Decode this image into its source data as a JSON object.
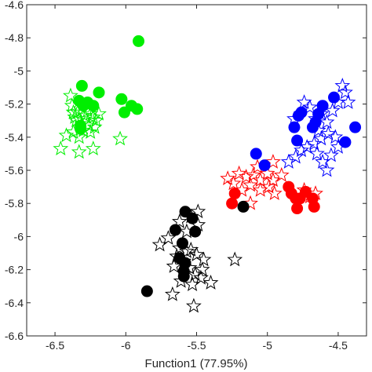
{
  "chart_data": {
    "type": "scatter",
    "title": "",
    "xlabel": "Function1 (77.95%)",
    "ylabel": "",
    "xlim": [
      -6.7,
      -4.3
    ],
    "ylim": [
      -6.6,
      -4.6
    ],
    "xticks": [
      -6.5,
      -6,
      -5.5,
      -5,
      -4.5
    ],
    "xtick_labels": [
      "-6.5",
      "-6",
      "-5.5",
      "-5",
      "-4.5"
    ],
    "yticks": [
      -4.6,
      -4.8,
      -5,
      -5.2,
      -5.4,
      -5.6,
      -5.8,
      -6,
      -6.2,
      -6.4,
      -6.6
    ],
    "ytick_labels": [
      "-4.6",
      "-4.8",
      "-5",
      "-5.2",
      "-5.4",
      "-5.6",
      "-5.8",
      "-6",
      "-6.2",
      "-6.4",
      "-6.6"
    ],
    "grid": false,
    "series": [
      {
        "color": "#00ee00",
        "marker": "circle-filled",
        "points": [
          [
            -5.91,
            -4.82
          ],
          [
            -6.31,
            -5.09
          ],
          [
            -6.33,
            -5.18
          ],
          [
            -6.3,
            -5.21
          ],
          [
            -6.27,
            -5.19
          ],
          [
            -6.23,
            -5.21
          ],
          [
            -6.19,
            -5.13
          ],
          [
            -6.03,
            -5.17
          ],
          [
            -5.96,
            -5.21
          ],
          [
            -5.92,
            -5.23
          ],
          [
            -6.01,
            -5.25
          ],
          [
            -6.32,
            -5.33
          ],
          [
            -6.32,
            -5.35
          ]
        ]
      },
      {
        "color": "#00ee00",
        "marker": "star-open",
        "points": [
          [
            -6.39,
            -5.15
          ],
          [
            -6.38,
            -5.21
          ],
          [
            -6.37,
            -5.25
          ],
          [
            -6.36,
            -5.28
          ],
          [
            -6.34,
            -5.25
          ],
          [
            -6.33,
            -5.29
          ],
          [
            -6.29,
            -5.27
          ],
          [
            -6.27,
            -5.24
          ],
          [
            -6.25,
            -5.26
          ],
          [
            -6.23,
            -5.28
          ],
          [
            -6.21,
            -5.3
          ],
          [
            -6.19,
            -5.26
          ],
          [
            -6.35,
            -5.3
          ],
          [
            -6.31,
            -5.32
          ],
          [
            -6.26,
            -5.33
          ],
          [
            -6.22,
            -5.34
          ],
          [
            -6.37,
            -5.37
          ],
          [
            -6.42,
            -5.39
          ],
          [
            -6.33,
            -5.4
          ],
          [
            -6.25,
            -5.37
          ],
          [
            -6.46,
            -5.47
          ],
          [
            -6.33,
            -5.49
          ],
          [
            -6.23,
            -5.47
          ],
          [
            -6.04,
            -5.41
          ],
          [
            -6.3,
            -5.36
          ]
        ]
      },
      {
        "color": "#0000ff",
        "marker": "circle-filled",
        "points": [
          [
            -5.08,
            -5.5
          ],
          [
            -5.02,
            -5.57
          ],
          [
            -4.76,
            -5.25
          ],
          [
            -4.81,
            -5.34
          ],
          [
            -4.79,
            -5.42
          ],
          [
            -4.68,
            -5.34
          ],
          [
            -4.66,
            -5.31
          ],
          [
            -4.64,
            -5.26
          ],
          [
            -4.61,
            -5.21
          ],
          [
            -4.53,
            -5.16
          ],
          [
            -4.38,
            -5.34
          ],
          [
            -4.45,
            -5.43
          ],
          [
            -4.78,
            -5.27
          ]
        ]
      },
      {
        "color": "#0000ff",
        "marker": "star-open",
        "points": [
          [
            -4.74,
            -5.19
          ],
          [
            -4.7,
            -5.22
          ],
          [
            -4.66,
            -5.29
          ],
          [
            -4.62,
            -5.26
          ],
          [
            -4.58,
            -5.31
          ],
          [
            -4.54,
            -5.24
          ],
          [
            -4.5,
            -5.19
          ],
          [
            -4.47,
            -5.09
          ],
          [
            -4.45,
            -5.13
          ],
          [
            -4.43,
            -5.19
          ],
          [
            -4.57,
            -5.38
          ],
          [
            -4.62,
            -5.41
          ],
          [
            -4.67,
            -5.44
          ],
          [
            -4.72,
            -5.46
          ],
          [
            -4.76,
            -5.48
          ],
          [
            -4.8,
            -5.52
          ],
          [
            -4.85,
            -5.55
          ],
          [
            -4.65,
            -5.5
          ],
          [
            -4.61,
            -5.55
          ],
          [
            -4.55,
            -5.51
          ],
          [
            -4.5,
            -5.46
          ],
          [
            -4.52,
            -5.4
          ],
          [
            -4.58,
            -5.6
          ],
          [
            -4.64,
            -5.36
          ],
          [
            -4.81,
            -5.29
          ]
        ]
      },
      {
        "color": "#ff0000",
        "marker": "circle-filled",
        "points": [
          [
            -5.23,
            -5.74
          ],
          [
            -5.25,
            -5.8
          ],
          [
            -4.85,
            -5.7
          ],
          [
            -4.83,
            -5.74
          ],
          [
            -4.8,
            -5.77
          ],
          [
            -4.77,
            -5.77
          ],
          [
            -4.73,
            -5.73
          ],
          [
            -4.68,
            -5.77
          ],
          [
            -4.67,
            -5.82
          ],
          [
            -4.79,
            -5.83
          ]
        ]
      },
      {
        "color": "#ff0000",
        "marker": "star-open",
        "points": [
          [
            -5.28,
            -5.65
          ],
          [
            -5.2,
            -5.62
          ],
          [
            -5.15,
            -5.64
          ],
          [
            -5.1,
            -5.63
          ],
          [
            -5.05,
            -5.66
          ],
          [
            -5.0,
            -5.62
          ],
          [
            -4.96,
            -5.66
          ],
          [
            -4.9,
            -5.63
          ],
          [
            -5.12,
            -5.69
          ],
          [
            -5.05,
            -5.72
          ],
          [
            -4.99,
            -5.7
          ],
          [
            -4.95,
            -5.74
          ],
          [
            -5.18,
            -5.72
          ],
          [
            -5.12,
            -5.8
          ],
          [
            -4.74,
            -5.72
          ],
          [
            -4.7,
            -5.76
          ],
          [
            -4.66,
            -5.74
          ],
          [
            -4.96,
            -5.55
          ],
          [
            -5.07,
            -5.58
          ],
          [
            -5.24,
            -5.68
          ]
        ]
      },
      {
        "color": "#000000",
        "marker": "circle-filled",
        "points": [
          [
            -5.85,
            -6.33
          ],
          [
            -5.58,
            -5.85
          ],
          [
            -5.53,
            -5.89
          ],
          [
            -5.65,
            -5.96
          ],
          [
            -5.51,
            -5.97
          ],
          [
            -5.6,
            -6.04
          ],
          [
            -5.62,
            -6.13
          ],
          [
            -5.58,
            -6.16
          ],
          [
            -5.59,
            -6.21
          ],
          [
            -5.59,
            -6.24
          ],
          [
            -5.17,
            -5.82
          ]
        ]
      },
      {
        "color": "#000000",
        "marker": "star-open",
        "points": [
          [
            -5.49,
            -5.85
          ],
          [
            -5.54,
            -5.88
          ],
          [
            -5.62,
            -5.91
          ],
          [
            -5.49,
            -5.93
          ],
          [
            -5.57,
            -5.97
          ],
          [
            -5.7,
            -6.01
          ],
          [
            -5.76,
            -6.05
          ],
          [
            -5.62,
            -6.07
          ],
          [
            -5.54,
            -6.08
          ],
          [
            -5.5,
            -6.11
          ],
          [
            -5.64,
            -6.12
          ],
          [
            -5.59,
            -6.15
          ],
          [
            -5.45,
            -6.14
          ],
          [
            -5.55,
            -6.19
          ],
          [
            -5.51,
            -6.23
          ],
          [
            -5.47,
            -6.25
          ],
          [
            -5.23,
            -6.14
          ],
          [
            -5.67,
            -6.35
          ],
          [
            -5.52,
            -6.42
          ],
          [
            -5.4,
            -6.28
          ],
          [
            -5.46,
            -6.2
          ],
          [
            -5.53,
            -6.29
          ],
          [
            -5.61,
            -6.27
          ],
          [
            -5.66,
            -6.18
          ],
          [
            -5.57,
            -6.09
          ]
        ]
      }
    ]
  }
}
